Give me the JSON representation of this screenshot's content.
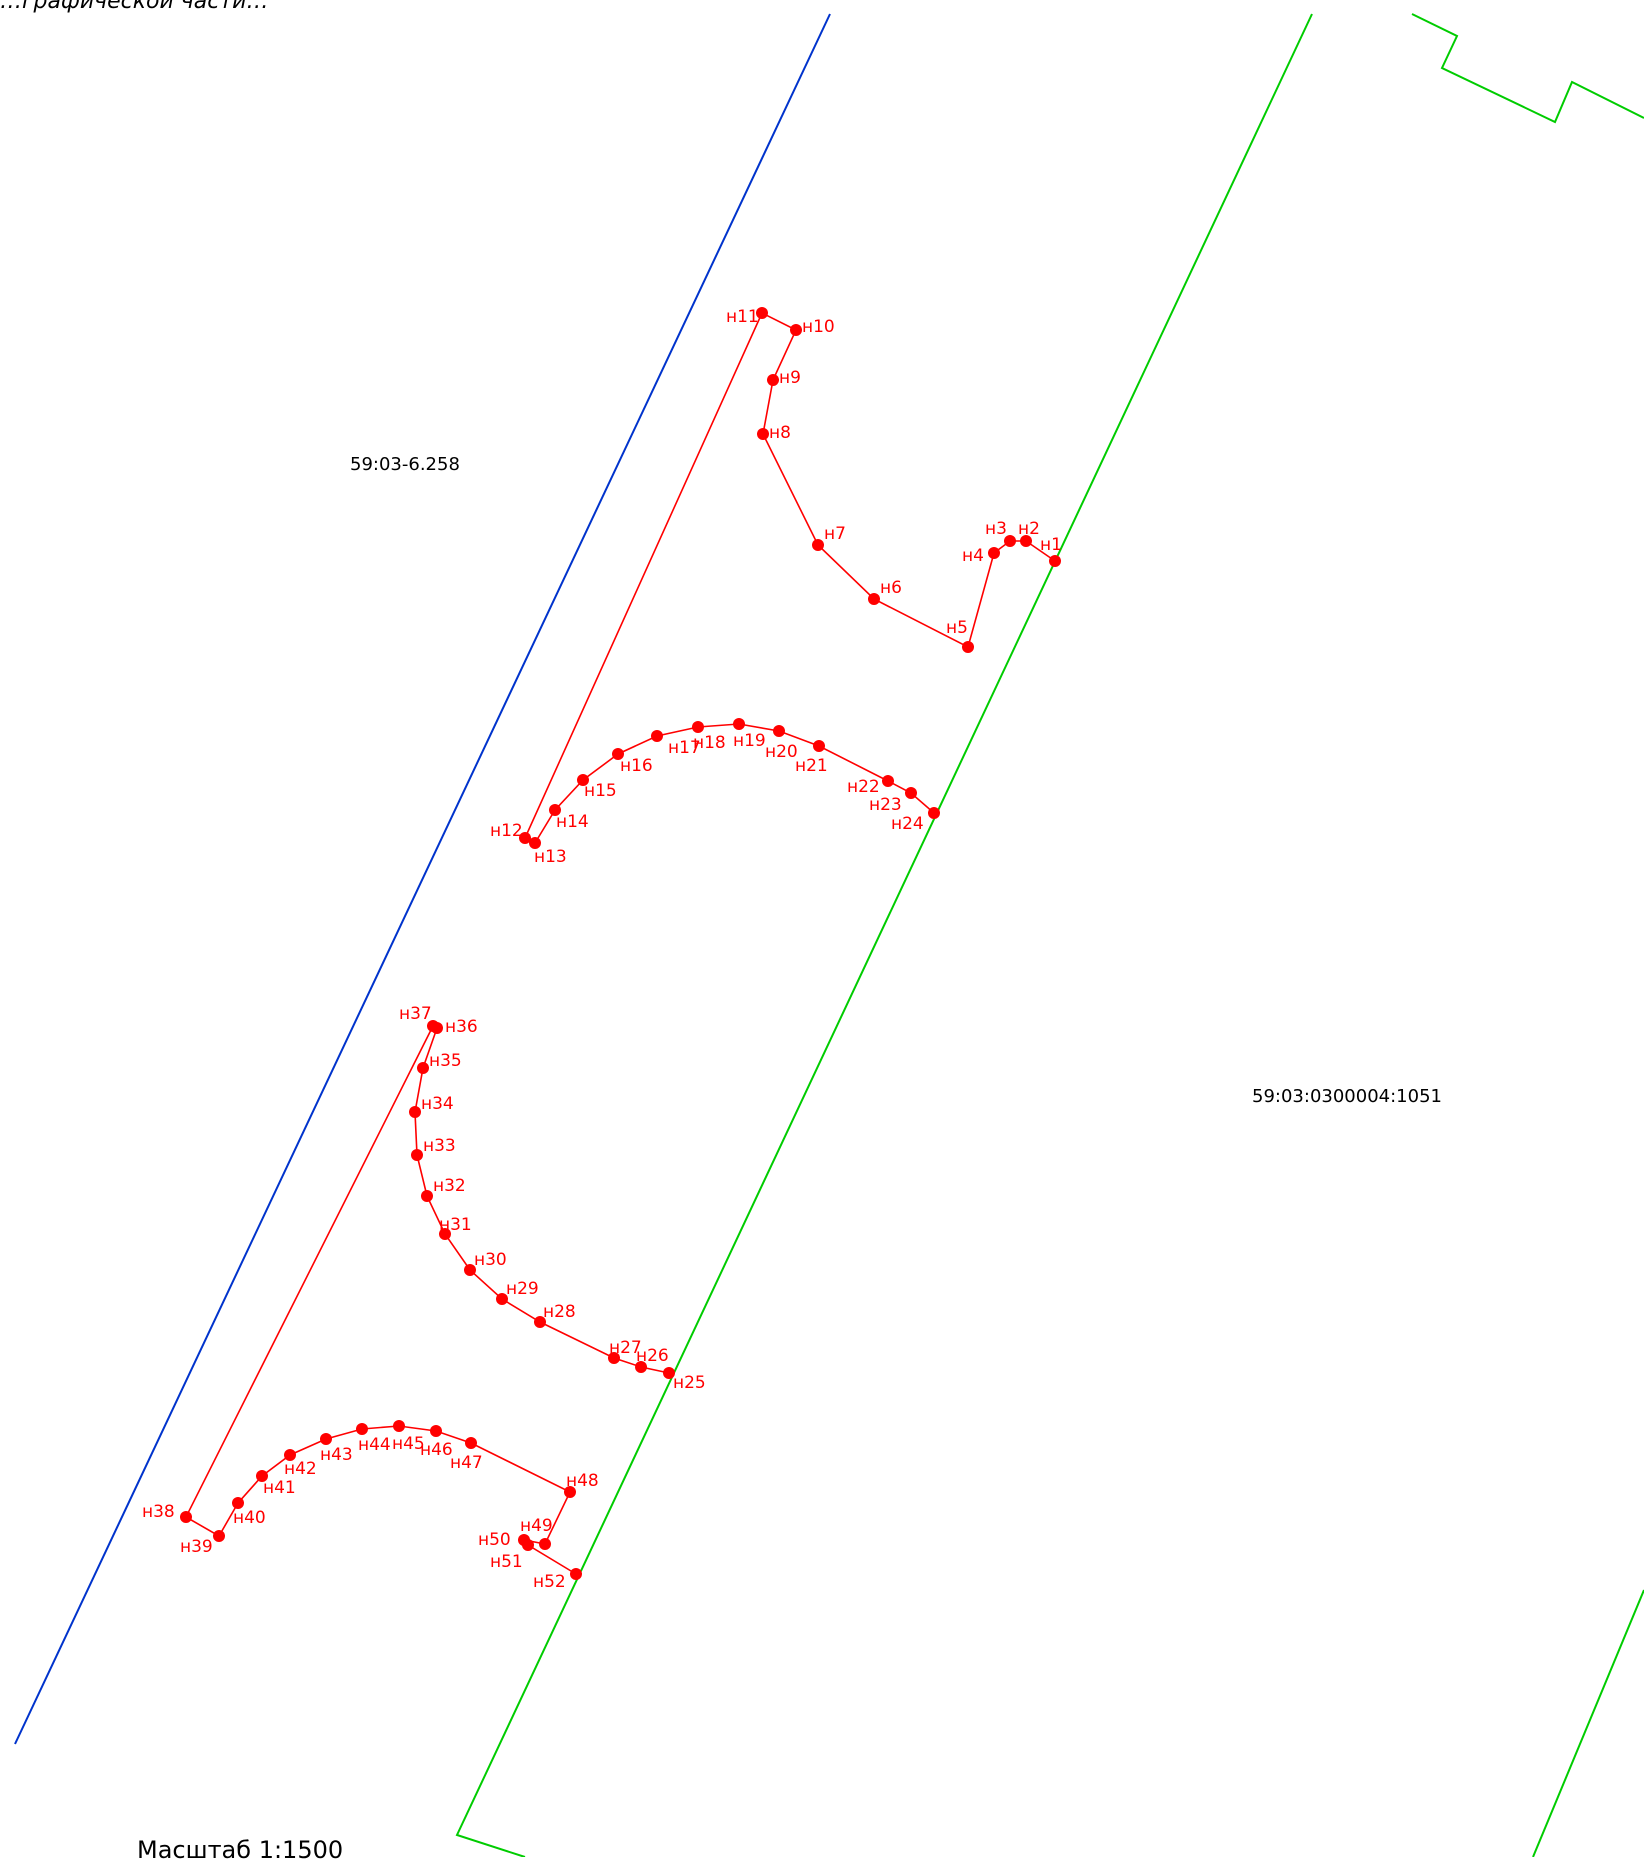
{
  "header_text": "…графической части…",
  "scale_text": "Масштаб 1:1500",
  "parcels": {
    "left_label": "59:03-6.258",
    "right_label": "59:03:0300004:1051"
  },
  "colors": {
    "contour": "#ff0000",
    "boundary_blue": "#0033cc",
    "boundary_green": "#00cc00",
    "text": "#000000"
  },
  "points": [
    {
      "label": "н1"
    },
    {
      "label": "н2"
    },
    {
      "label": "н3"
    },
    {
      "label": "н4"
    },
    {
      "label": "н5"
    },
    {
      "label": "н6"
    },
    {
      "label": "н7"
    },
    {
      "label": "н8"
    },
    {
      "label": "н9"
    },
    {
      "label": "н10"
    },
    {
      "label": "н11"
    },
    {
      "label": "н12"
    },
    {
      "label": "н13"
    },
    {
      "label": "н14"
    },
    {
      "label": "н15"
    },
    {
      "label": "н16"
    },
    {
      "label": "н17"
    },
    {
      "label": "н18"
    },
    {
      "label": "н19"
    },
    {
      "label": "н20"
    },
    {
      "label": "н21"
    },
    {
      "label": "н22"
    },
    {
      "label": "н23"
    },
    {
      "label": "н24"
    },
    {
      "label": "н25"
    },
    {
      "label": "н26"
    },
    {
      "label": "н27"
    },
    {
      "label": "н28"
    },
    {
      "label": "н29"
    },
    {
      "label": "н30"
    },
    {
      "label": "н31"
    },
    {
      "label": "н32"
    },
    {
      "label": "н33"
    },
    {
      "label": "н34"
    },
    {
      "label": "н35"
    },
    {
      "label": "н36"
    },
    {
      "label": "н37"
    },
    {
      "label": "н38"
    },
    {
      "label": "н39"
    },
    {
      "label": "н40"
    },
    {
      "label": "н41"
    },
    {
      "label": "н42"
    },
    {
      "label": "н43"
    },
    {
      "label": "н44"
    },
    {
      "label": "н45"
    },
    {
      "label": "н46"
    },
    {
      "label": "н47"
    },
    {
      "label": "н48"
    },
    {
      "label": "н49"
    },
    {
      "label": "н50"
    },
    {
      "label": "н51"
    },
    {
      "label": "н52"
    }
  ]
}
